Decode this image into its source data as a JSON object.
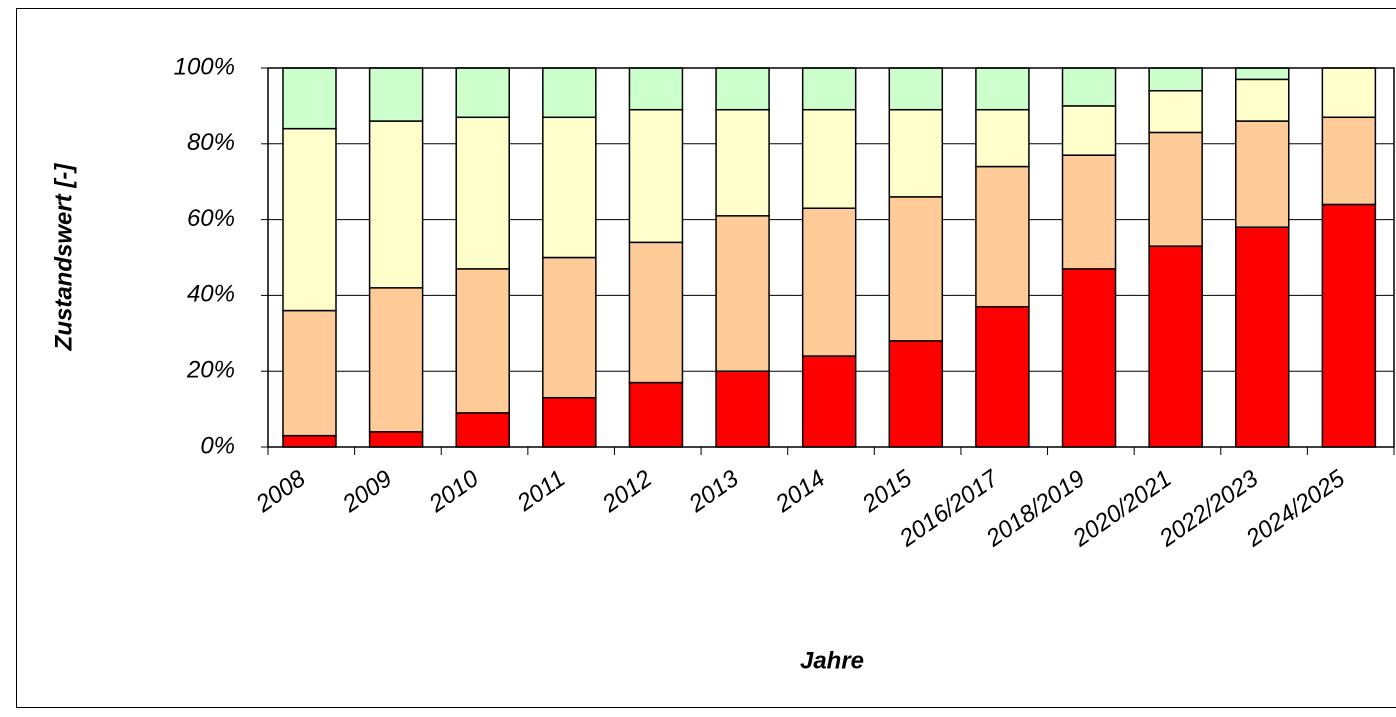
{
  "chart_data": {
    "type": "stacked_bar",
    "x_label": "Jahre",
    "y_label": "Zustandswert [-]",
    "categories": [
      "2008",
      "2009",
      "2010",
      "2011",
      "2012",
      "2013",
      "2014",
      "2015",
      "2016/2017",
      "2018/2019",
      "2020/2021",
      "2022/2023",
      "2024/2025"
    ],
    "series": [
      {
        "color": "#ff0000",
        "values": [
          3,
          4,
          9,
          13,
          17,
          20,
          24,
          28,
          37,
          47,
          53,
          58,
          64
        ]
      },
      {
        "color": "#ffcc99",
        "values": [
          33,
          38,
          38,
          37,
          37,
          41,
          39,
          38,
          37,
          30,
          30,
          28,
          23
        ]
      },
      {
        "color": "#ffffcc",
        "values": [
          48,
          44,
          40,
          37,
          35,
          28,
          26,
          23,
          15,
          13,
          11,
          11,
          13
        ]
      },
      {
        "color": "#ccffcc",
        "values": [
          16,
          14,
          13,
          13,
          11,
          11,
          11,
          11,
          11,
          10,
          6,
          3,
          0
        ]
      }
    ],
    "ylim": [
      0,
      100
    ],
    "yticks": [
      {
        "value": 0,
        "label": "0%"
      },
      {
        "value": 20,
        "label": "20%"
      },
      {
        "value": 40,
        "label": "40%"
      },
      {
        "value": 60,
        "label": "60%"
      },
      {
        "value": 80,
        "label": "80%"
      },
      {
        "value": 100,
        "label": "100%"
      }
    ],
    "grid": true
  }
}
